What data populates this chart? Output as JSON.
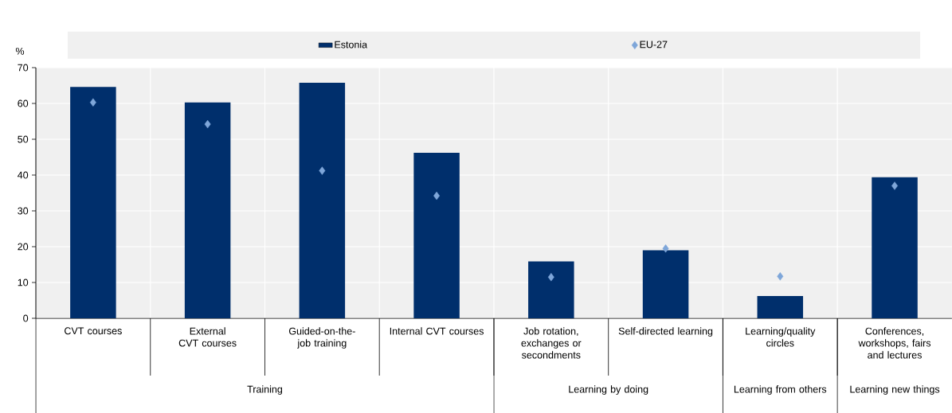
{
  "chart_data": {
    "type": "bar",
    "ylabel": "%",
    "categories": [
      "CVT courses",
      "External CVT courses",
      "Guided-on-the-job training",
      "Internal CVT courses",
      "Job rotation, exchanges or secondments",
      "Self-directed learning",
      "Learning/quality circles",
      "Conferences, workshops, fairs and lectures"
    ],
    "series": [
      {
        "name": "Estonia",
        "color": "#002f6c",
        "values": [
          64.6,
          60.3,
          65.8,
          46.2,
          15.9,
          19.0,
          6.2,
          39.4
        ]
      },
      {
        "name": "EU-27",
        "type": "scatter",
        "marker": "diamond",
        "color": "#7ea6d9",
        "values": [
          60.3,
          54.2,
          41.2,
          34.2,
          11.5,
          19.5,
          11.7,
          37.0
        ]
      }
    ],
    "ylim": [
      0,
      70
    ],
    "yticks": [
      0,
      10,
      20,
      30,
      40,
      50,
      60,
      70
    ],
    "grid": true,
    "legend": "top",
    "annotations": [
      "Training",
      "Learning by doing",
      "Learning from others",
      "Learning new things"
    ]
  }
}
